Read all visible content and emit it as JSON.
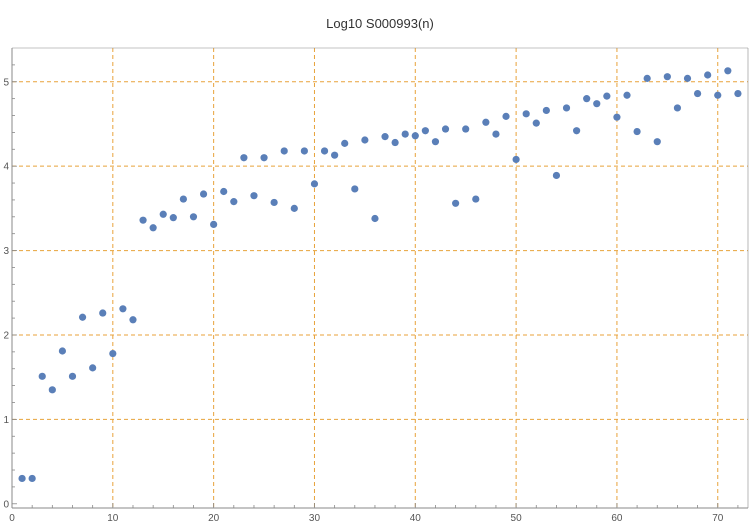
{
  "chart_data": {
    "type": "scatter",
    "title": "Log10 S000993(n)",
    "xlabel": "",
    "ylabel": "",
    "xlim": [
      0,
      73
    ],
    "ylim": [
      -0.05,
      5.4
    ],
    "xticks": [
      0,
      10,
      20,
      30,
      40,
      50,
      60,
      70
    ],
    "yticks": [
      0,
      1,
      2,
      3,
      4,
      5
    ],
    "xtick_labels": [
      "0",
      "10",
      "20",
      "30",
      "40",
      "50",
      "60",
      "70"
    ],
    "ytick_labels": [
      "0",
      "1",
      "2",
      "3",
      "4",
      "5"
    ],
    "grid": "on, dashed, at major ticks",
    "colors": {
      "points": "#5a7fb8",
      "grid": "#e8a23a",
      "axis": "#888888"
    },
    "x": [
      1,
      2,
      3,
      4,
      5,
      6,
      7,
      8,
      9,
      10,
      11,
      12,
      13,
      14,
      15,
      16,
      17,
      18,
      19,
      20,
      21,
      22,
      23,
      24,
      25,
      26,
      27,
      28,
      29,
      30,
      31,
      32,
      33,
      34,
      35,
      36,
      37,
      38,
      39,
      40,
      41,
      42,
      43,
      44,
      45,
      46,
      47,
      48,
      49,
      50,
      51,
      52,
      53,
      54,
      55,
      56,
      57,
      58,
      59,
      60,
      61,
      62,
      63,
      64,
      65,
      66,
      67,
      68,
      69,
      70,
      71,
      72
    ],
    "y": [
      0.3,
      0.3,
      1.51,
      1.35,
      1.81,
      1.51,
      2.21,
      1.61,
      2.26,
      1.78,
      2.31,
      2.18,
      3.36,
      3.27,
      3.43,
      3.39,
      3.61,
      3.4,
      3.67,
      3.31,
      3.7,
      3.58,
      4.1,
      3.65,
      4.1,
      3.57,
      4.18,
      3.5,
      4.18,
      3.79,
      4.18,
      4.13,
      4.27,
      3.73,
      4.31,
      3.38,
      4.35,
      4.28,
      4.38,
      4.36,
      4.42,
      4.29,
      4.44,
      3.56,
      4.44,
      3.61,
      4.52,
      4.38,
      4.59,
      4.08,
      4.62,
      4.51,
      4.66,
      3.89,
      4.69,
      4.42,
      4.8,
      4.74,
      4.83,
      4.58,
      4.84,
      4.41,
      5.04,
      4.29,
      5.06,
      4.69,
      5.04,
      4.86,
      5.08,
      4.84,
      5.13,
      4.86
    ]
  }
}
